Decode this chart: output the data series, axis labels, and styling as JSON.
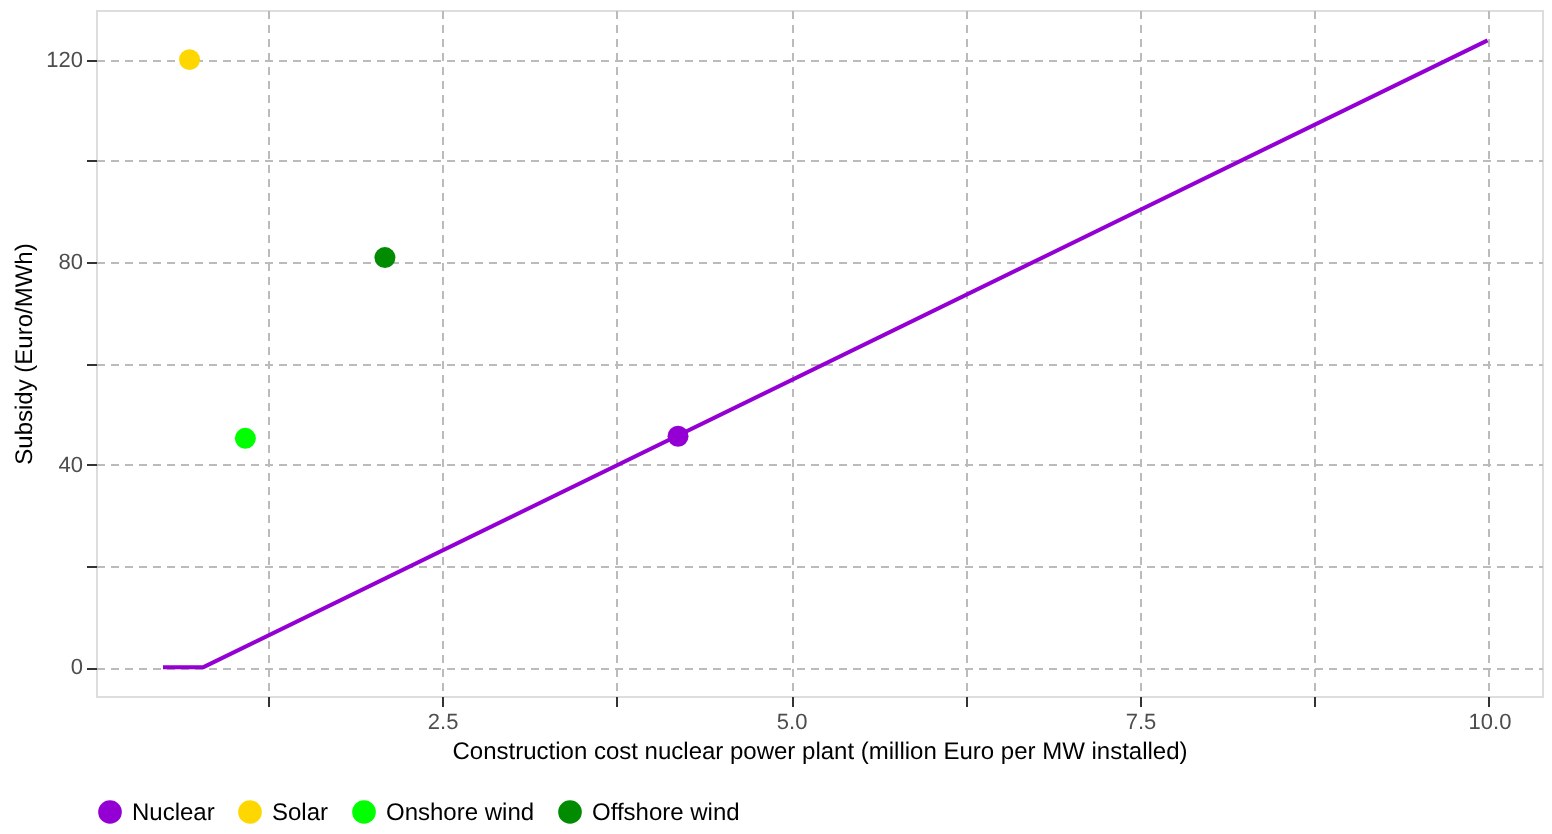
{
  "chart_data": {
    "type": "scatter",
    "xlabel": "Construction cost nuclear power plant (million Euro per MW installed)",
    "ylabel": "Subsidy (Euro/MWh)",
    "xlim": [
      0.02,
      10.38
    ],
    "ylim": [
      -5.7,
      129.8
    ],
    "xticks": [
      {
        "value": 1.25,
        "label": null
      },
      2.5,
      {
        "value": 3.75,
        "label": null
      },
      "5.0",
      {
        "value": 6.25,
        "label": null
      },
      7.5,
      {
        "value": 8.75,
        "label": null
      },
      "10.0"
    ],
    "yticks": [
      0,
      {
        "value": 20,
        "label": null
      },
      40,
      {
        "value": 60,
        "label": null
      },
      80,
      {
        "value": 100,
        "label": null
      },
      120
    ],
    "grid": true,
    "legend": "bottom",
    "marker": "circle",
    "series": [
      {
        "type": "line",
        "color": "#9400d3",
        "x": [
          0.5,
          0.79,
          9.99
        ],
        "values": [
          0,
          0,
          123.8
        ],
        "line_style": "solid",
        "marker": "none"
      },
      {
        "name": "Nuclear",
        "color": "#9400d3",
        "x": [
          4.19
        ],
        "values": [
          45.6
        ]
      },
      {
        "name": "Solar",
        "color": "#ffd700",
        "x": [
          0.69
        ],
        "values": [
          120
        ]
      },
      {
        "name": "Onshore wind",
        "color": "#00ff00",
        "x": [
          1.09
        ],
        "values": [
          45.2
        ]
      },
      {
        "name": "Offshore wind",
        "color": "#008b00",
        "x": [
          2.09
        ],
        "values": [
          80.9
        ]
      }
    ]
  }
}
